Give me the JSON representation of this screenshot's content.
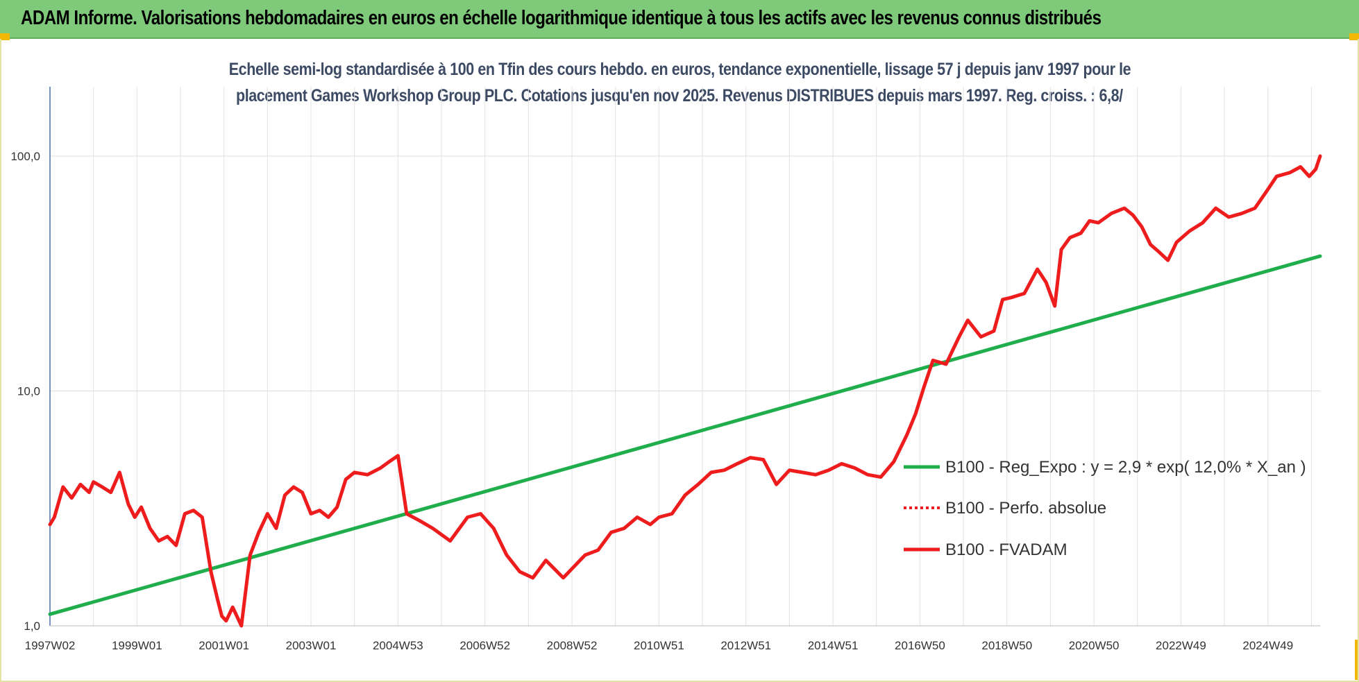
{
  "banner": {
    "title": "ADAM Informe. Valorisations hebdomadaires en euros en échelle logarithmique identique à tous les actifs avec les revenus connus distribués"
  },
  "colors": {
    "banner_bg": "#7ec97a",
    "corner": "#f2b705",
    "series_fvadam": "#ee1c1c",
    "series_reg": "#1fae4b",
    "series_perfo": "#ee1c1c",
    "title_text": "#3c4a63"
  },
  "chart_data": {
    "type": "line",
    "title_line1": "Echelle semi-log standardisée à 100 en Tfin des cours hebdo. en euros, tendance exponentielle, lissage 57 j depuis janv 1997 pour le",
    "title_line2": "placement Games Workshop Group PLC. Cotations jusqu'en nov 2025. Revenus DISTRIBUES depuis mars 1997. Reg. croiss. : 6,8/",
    "y_scale": "log",
    "ylim": [
      1,
      100
    ],
    "y_ticks": [
      {
        "value": 1,
        "label": "1,0"
      },
      {
        "value": 10,
        "label": "10,0"
      },
      {
        "value": 100,
        "label": "100,0"
      }
    ],
    "x_ticks": [
      {
        "value": 1997.0,
        "label": "1997W02"
      },
      {
        "value": 1999.0,
        "label": "1999W01"
      },
      {
        "value": 2001.0,
        "label": "2001W01"
      },
      {
        "value": 2003.0,
        "label": "2003W01"
      },
      {
        "value": 2005.0,
        "label": "2004W53"
      },
      {
        "value": 2007.0,
        "label": "2006W52"
      },
      {
        "value": 2009.0,
        "label": "2008W52"
      },
      {
        "value": 2011.0,
        "label": "2010W51"
      },
      {
        "value": 2013.0,
        "label": "2012W51"
      },
      {
        "value": 2015.0,
        "label": "2014W51"
      },
      {
        "value": 2017.0,
        "label": "2016W50"
      },
      {
        "value": 2019.0,
        "label": "2018W50"
      },
      {
        "value": 2021.0,
        "label": "2020W50"
      },
      {
        "value": 2023.0,
        "label": "2022W49"
      },
      {
        "value": 2025.0,
        "label": "2024W49"
      }
    ],
    "xlim": [
      1997.0,
      2026.2
    ],
    "legend": {
      "position": "right",
      "entries": [
        {
          "key": "reg",
          "label": "B100 - Reg_Expo : y = 2,9 * exp( 12,0% *  X_an )"
        },
        {
          "key": "perfo",
          "label": "B100 - Perfo. absolue"
        },
        {
          "key": "fvadam",
          "label": "B100 - FVADAM"
        }
      ]
    },
    "series": [
      {
        "name": "B100 - Reg_Expo : y = 2,9 * exp( 12,0% *  X_an )",
        "key": "reg",
        "x": [
          1997.0,
          2026.2
        ],
        "values": [
          1.12,
          37.5
        ]
      },
      {
        "name": "B100 - FVADAM",
        "key": "fvadam",
        "x": [
          1997.0,
          1997.1,
          1997.3,
          1997.5,
          1997.7,
          1997.9,
          1998.0,
          1998.2,
          1998.4,
          1998.6,
          1998.8,
          1998.95,
          1999.1,
          1999.3,
          1999.5,
          1999.7,
          1999.9,
          2000.1,
          2000.3,
          2000.5,
          2000.7,
          2000.85,
          2000.95,
          2001.05,
          2001.2,
          2001.4,
          2001.6,
          2001.8,
          2002.0,
          2002.2,
          2002.4,
          2002.6,
          2002.8,
          2003.0,
          2003.2,
          2003.4,
          2003.6,
          2003.8,
          2004.0,
          2004.3,
          2004.6,
          2004.8,
          2005.0,
          2005.2,
          2005.5,
          2005.8,
          2006.2,
          2006.6,
          2006.9,
          2007.2,
          2007.5,
          2007.8,
          2008.1,
          2008.4,
          2008.8,
          2009.0,
          2009.3,
          2009.6,
          2009.9,
          2010.2,
          2010.5,
          2010.8,
          2011.0,
          2011.3,
          2011.6,
          2011.9,
          2012.2,
          2012.5,
          2012.8,
          2013.1,
          2013.4,
          2013.7,
          2014.0,
          2014.3,
          2014.6,
          2014.9,
          2015.2,
          2015.5,
          2015.8,
          2016.1,
          2016.4,
          2016.7,
          2016.9,
          2017.1,
          2017.3,
          2017.6,
          2017.9,
          2018.1,
          2018.4,
          2018.7,
          2018.9,
          2019.1,
          2019.4,
          2019.7,
          2019.9,
          2020.1,
          2020.25,
          2020.45,
          2020.7,
          2020.9,
          2021.1,
          2021.4,
          2021.7,
          2021.9,
          2022.1,
          2022.3,
          2022.5,
          2022.7,
          2022.9,
          2023.2,
          2023.5,
          2023.8,
          2024.1,
          2024.4,
          2024.7,
          2024.95,
          2025.2,
          2025.5,
          2025.75,
          2025.95,
          2026.1,
          2026.2
        ],
        "values": [
          2.7,
          2.9,
          3.9,
          3.5,
          4.0,
          3.7,
          4.1,
          3.9,
          3.7,
          4.5,
          3.3,
          2.9,
          3.2,
          2.6,
          2.3,
          2.4,
          2.2,
          3.0,
          3.1,
          2.9,
          1.7,
          1.3,
          1.1,
          1.05,
          1.2,
          1.0,
          2.0,
          2.5,
          3.0,
          2.6,
          3.6,
          3.9,
          3.7,
          3.0,
          3.1,
          2.9,
          3.2,
          4.2,
          4.5,
          4.4,
          4.7,
          5.0,
          5.3,
          3.0,
          2.8,
          2.6,
          2.3,
          2.9,
          3.0,
          2.6,
          2.0,
          1.7,
          1.6,
          1.9,
          1.6,
          1.75,
          2.0,
          2.1,
          2.5,
          2.6,
          2.9,
          2.7,
          2.9,
          3.0,
          3.6,
          4.0,
          4.5,
          4.6,
          4.9,
          5.2,
          5.1,
          4.0,
          4.6,
          4.5,
          4.4,
          4.6,
          4.9,
          4.7,
          4.4,
          4.3,
          5.0,
          6.5,
          8.0,
          10.5,
          13.5,
          13.0,
          17.0,
          20.0,
          17.0,
          18.0,
          24.5,
          25.0,
          26.0,
          33.0,
          29.0,
          23.0,
          40.0,
          45.0,
          47.0,
          53.0,
          52.0,
          57.0,
          60.0,
          56.0,
          50.0,
          42.0,
          39.0,
          36.0,
          43.0,
          48.0,
          52.0,
          60.0,
          55.0,
          57.0,
          60.0,
          70.0,
          82.0,
          85.0,
          90.0,
          82.0,
          88.0,
          100.0
        ]
      }
    ]
  }
}
